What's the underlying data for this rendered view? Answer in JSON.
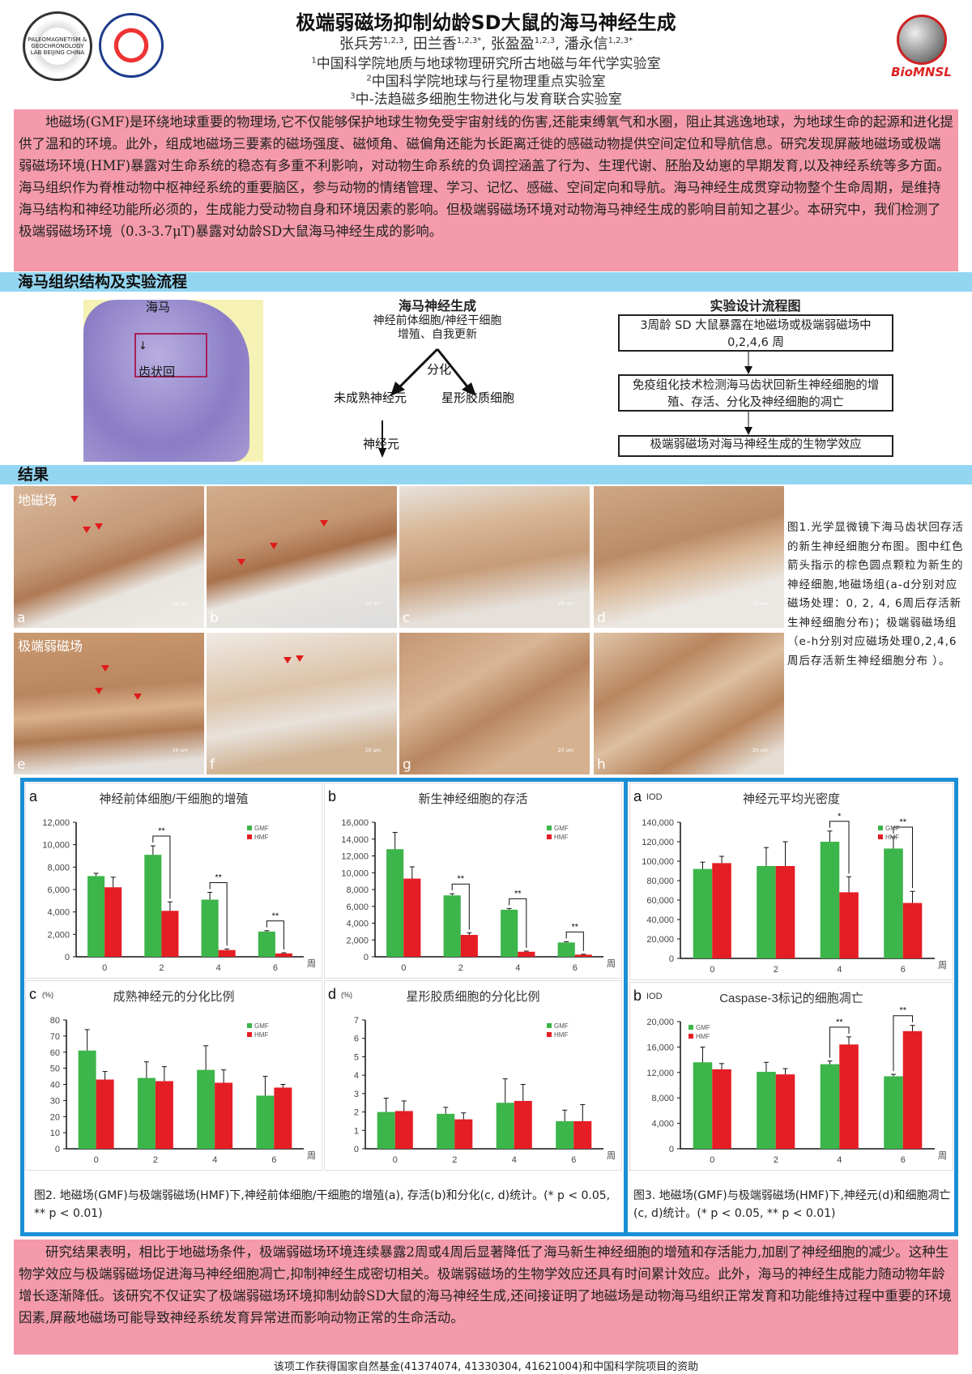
{
  "header": {
    "title": "极端弱磁场抑制幼龄SD大鼠的海马神经生成",
    "authors": [
      {
        "name": "张兵芳",
        "sup": "1,2,3"
      },
      {
        "name": "田兰香",
        "sup": "1,2,3*"
      },
      {
        "name": "张盈盈",
        "sup": "1,2,3"
      },
      {
        "name": "潘永信",
        "sup": "1,2,3*"
      }
    ],
    "affiliations": [
      {
        "num": "1",
        "text": "中国科学院地质与地球物理研究所古地磁与年代学实验室"
      },
      {
        "num": "2",
        "text": "中国科学院地球与行星物理重点实验室"
      },
      {
        "num": "3",
        "text": "中-法趋磁多细胞生物进化与发育联合实验室"
      }
    ],
    "logos": {
      "left1": "PALEOMAGNETISM & GEOCHRONOLOGY LAB BEIJING CHINA",
      "right": "BioMNSL"
    }
  },
  "intro": "地磁场(GMF)是环绕地球重要的物理场,它不仅能够保护地球生物免受宇宙射线的伤害,还能束缚氧气和水圈，阻止其逃逸地球，为地球生命的起源和进化提供了温和的环境。此外，组成地磁场三要素的磁场强度、磁倾角、磁偏角还能为长距离迁徙的感磁动物提供空间定位和导航信息。研究发现屏蔽地磁场或极端弱磁场环境(HMF)暴露对生命系统的稳态有多重不利影响，对动物生命系统的负调控涵盖了行为、生理代谢、胚胎及幼崽的早期发育,以及神经系统等多方面。海马组织作为脊椎动物中枢神经系统的重要脑区，参与动物的情绪管理、学习、记忆、感磁、空间定向和导航。海马神经生成贯穿动物整个生命周期，是维持海马结构和神经功能所必须的，生成能力受动物自身和环境因素的影响。但极端弱磁场环境对动物海马神经生成的影响目前知之甚少。本研究中，我们检测了极端弱磁场环境（0.3-3.7μT)暴露对幼龄SD大鼠海马神经生成的影响。",
  "section1": {
    "title": "海马组织结构及实验流程",
    "brain_labels": {
      "hippocampus": "海马",
      "dentate_gyrus": "齿状回"
    },
    "neurogenesis": {
      "title": "海马神经生成",
      "source": "神经前体细胞/神经干细胞",
      "source2": "增殖、自我更新",
      "differentiate": "分化",
      "immature": "未成熟神经元",
      "astrocyte": "星形胶质细胞",
      "neuron": "神经元"
    },
    "flow": {
      "title": "实验设计流程图",
      "steps": [
        "3周龄 SD 大鼠暴露在地磁场或极端弱磁场中 0,2,4,6 周",
        "免疫组化技术检测海马齿状回新生神经细胞的增殖、存活、分化及神经细胞的凋亡",
        "极端弱磁场对海马神经生成的生物学效应"
      ]
    }
  },
  "section2": {
    "title": "结果",
    "row_labels": [
      "地磁场",
      "极端弱磁场"
    ],
    "photo_tags": [
      "a",
      "b",
      "c",
      "d",
      "e",
      "f",
      "g",
      "h"
    ],
    "scale_label": "20 um",
    "fig1_caption": "图1.光学显微镜下海马齿状回存活的新生神经细胞分布图。图中红色箭头指示的棕色圆点颗粒为新生的神经细胞,地磁场组(a-d分别对应磁场处理：0, 2, 4, 6周后存活新生神经细胞分布)；极端弱磁场组（e-h分别对应磁场处理0,2,4,6周后存活新生神经细胞分布 ）。",
    "fig2_caption": "图2. 地磁场(GMF)与极端弱磁场(HMF)下,神经前体细胞/干细胞的增殖(a), 存活(b)和分化(c, d)统计。(* p < 0.05, ** p < 0.01)",
    "fig3_caption": "图3. 地磁场(GMF)与极端弱磁场(HMF)下,神经元(d)和细胞凋亡(c, d)统计。(* p < 0.05, ** p < 0.01)"
  },
  "colors": {
    "gmf": "#3cb54a",
    "hmf": "#e51d25",
    "pink": "#f49aaa",
    "blue_bar": "#93d6f2",
    "chart_border": "#1b8fd6"
  },
  "chart_data": [
    {
      "type": "bar",
      "letter": "a",
      "title": "神经前体细胞/干细胞的增殖",
      "ylabel": "",
      "xunit": "周",
      "categories": [
        "0",
        "2",
        "4",
        "6"
      ],
      "ylim": [
        0,
        12000
      ],
      "ytick": 2000,
      "legend": "top-right",
      "series": [
        {
          "name": "GMF",
          "values": [
            7200,
            9100,
            5100,
            2250
          ],
          "errors": [
            250,
            800,
            650,
            80
          ]
        },
        {
          "name": "HMF",
          "values": [
            6200,
            4100,
            600,
            300
          ],
          "errors": [
            900,
            800,
            100,
            60
          ]
        }
      ],
      "significance": [
        {
          "category": "2",
          "mark": "**"
        },
        {
          "category": "4",
          "mark": "**"
        },
        {
          "category": "6",
          "mark": "**"
        }
      ]
    },
    {
      "type": "bar",
      "letter": "b",
      "title": "新生神经细胞的存活",
      "ylabel": "",
      "xunit": "周",
      "categories": [
        "0",
        "2",
        "4",
        "6"
      ],
      "ylim": [
        0,
        16000
      ],
      "ytick": 2000,
      "legend": "top-right",
      "series": [
        {
          "name": "GMF",
          "values": [
            12800,
            7300,
            5600,
            1700
          ],
          "errors": [
            2000,
            200,
            150,
            100
          ]
        },
        {
          "name": "HMF",
          "values": [
            9300,
            2600,
            600,
            250
          ],
          "errors": [
            1400,
            250,
            80,
            50
          ]
        }
      ],
      "significance": [
        {
          "category": "2",
          "mark": "**"
        },
        {
          "category": "4",
          "mark": "**"
        },
        {
          "category": "6",
          "mark": "**"
        }
      ]
    },
    {
      "type": "bar",
      "letter": "c",
      "title": "成熟神经元的分化比例",
      "ylabel": "(%)",
      "xunit": "周",
      "categories": [
        "0",
        "2",
        "4",
        "6"
      ],
      "ylim": [
        0,
        80
      ],
      "ytick": 10,
      "legend": "top-right",
      "series": [
        {
          "name": "GMF",
          "values": [
            61,
            44,
            49,
            33
          ],
          "errors": [
            13,
            10,
            15,
            12
          ]
        },
        {
          "name": "HMF",
          "values": [
            43,
            42,
            41,
            38
          ],
          "errors": [
            5,
            9,
            8,
            2
          ]
        }
      ],
      "significance": []
    },
    {
      "type": "bar",
      "letter": "d",
      "title": "星形胶质细胞的分化比例",
      "ylabel": "(%)",
      "xunit": "周",
      "categories": [
        "0",
        "2",
        "4",
        "6"
      ],
      "ylim": [
        0,
        7
      ],
      "ytick": 1,
      "legend": "top-right",
      "series": [
        {
          "name": "GMF",
          "values": [
            2.0,
            1.9,
            2.5,
            1.5
          ],
          "errors": [
            0.75,
            0.35,
            1.3,
            0.6
          ]
        },
        {
          "name": "HMF",
          "values": [
            2.05,
            1.6,
            2.6,
            1.5
          ],
          "errors": [
            0.55,
            0.35,
            0.9,
            0.9
          ]
        }
      ],
      "significance": []
    },
    {
      "type": "bar",
      "letter": "a",
      "title": "神经元平均光密度",
      "ylabel": "IOD",
      "xunit": "周",
      "categories": [
        "0",
        "2",
        "4",
        "6"
      ],
      "ylim": [
        0,
        140000
      ],
      "ytick": 20000,
      "legend": "top-right",
      "series": [
        {
          "name": "GMF",
          "values": [
            92000,
            95000,
            120000,
            113000
          ],
          "errors": [
            7000,
            19000,
            11000,
            12000
          ]
        },
        {
          "name": "HMF",
          "values": [
            98000,
            95000,
            68000,
            57000
          ],
          "errors": [
            7000,
            25000,
            16000,
            12000
          ]
        }
      ],
      "significance": [
        {
          "category": "4",
          "mark": "*"
        },
        {
          "category": "6",
          "mark": "**"
        }
      ]
    },
    {
      "type": "bar",
      "letter": "b",
      "title": "Caspase-3标记的细胞凋亡",
      "ylabel": "IOD",
      "xunit": "周",
      "categories": [
        "0",
        "2",
        "4",
        "6"
      ],
      "ylim": [
        0,
        20000
      ],
      "ytick": 4000,
      "legend": "top-left",
      "series": [
        {
          "name": "GMF",
          "values": [
            13600,
            12100,
            13300,
            11400
          ],
          "errors": [
            2400,
            1500,
            500,
            300
          ]
        },
        {
          "name": "HMF",
          "values": [
            12500,
            11700,
            16400,
            18500
          ],
          "errors": [
            900,
            900,
            1200,
            900
          ]
        }
      ],
      "significance": [
        {
          "category": "4",
          "mark": "**"
        },
        {
          "category": "6",
          "mark": "**"
        }
      ]
    }
  ],
  "conclusion": "研究结果表明，相比于地磁场条件，极端弱磁场环境连续暴露2周或4周后显著降低了海马新生神经细胞的增殖和存活能力,加剧了神经细胞的减少。这种生物学效应与极端弱磁场促进海马神经细胞凋亡,抑制神经生成密切相关。极端弱磁场的生物学效应还具有时间累计效应。此外，海马的神经生成能力随动物年龄增长逐渐降低。该研究不仅证实了极端弱磁场环境抑制幼龄SD大鼠的海马神经生成,还间接证明了地磁场是动物海马组织正常发育和功能维持过程中重要的环境因素,屏蔽地磁场可能导致神经系统发育异常进而影响动物正常的生命活动。",
  "footer": "该项工作获得国家自然基金(41374074, 41330304, 41621004)和中国科学院项目的资助"
}
